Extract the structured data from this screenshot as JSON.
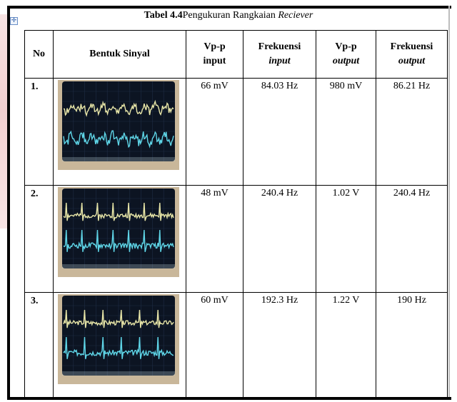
{
  "caption": {
    "bold": "Tabel 4.4",
    "text": "Pengukuran Rangkaian ",
    "italic": "Reciever"
  },
  "headers": {
    "no": "No",
    "shape": "Bentuk Sinyal",
    "vpp_in": [
      "Vp-p",
      "input"
    ],
    "freq_in": [
      "Frekuensi",
      "input"
    ],
    "vpp_out": [
      "Vp-p",
      "output"
    ],
    "freq_out": [
      "Frekuensi",
      "output"
    ]
  },
  "rows": [
    {
      "no": "1.",
      "vpp_in": "66 mV",
      "freq_in": "84.03 Hz",
      "vpp_out": "980 mV",
      "freq_out": "86.21 Hz"
    },
    {
      "no": "2.",
      "vpp_in": "48 mV",
      "freq_in": "240.4 Hz",
      "vpp_out": "1.02 V",
      "freq_out": "240.4 Hz"
    },
    {
      "no": "3.",
      "vpp_in": "60 mV",
      "freq_in": "192.3 Hz",
      "vpp_out": "1.22 V",
      "freq_out": "190 Hz"
    }
  ],
  "colors": {
    "scope_bg": "#0c1422",
    "trace_yellow": "#e8e6a8",
    "trace_cyan": "#5fd6e8",
    "bezel": "#c9b79a"
  },
  "icons": {
    "move_handle": "table-move-icon"
  }
}
